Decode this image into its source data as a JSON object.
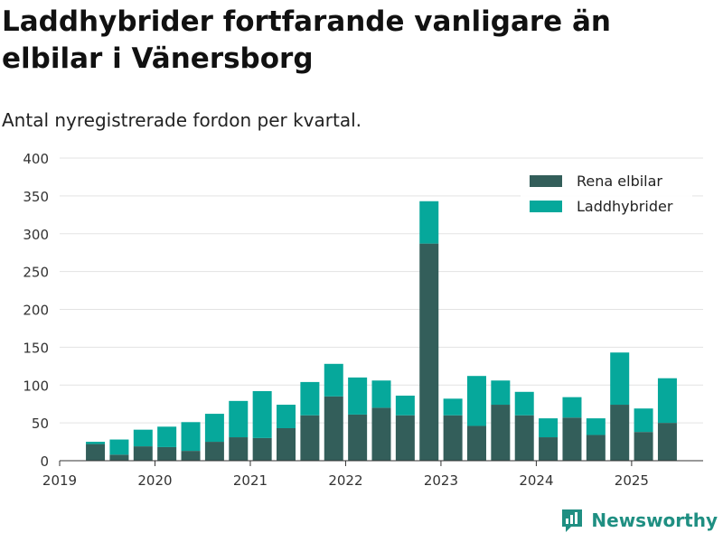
{
  "header": {
    "title": "Laddhybrider fortfarande vanligare än elbilar i Vänersborg",
    "subtitle": "Antal nyregistrerade fordon per kvartal."
  },
  "brand": {
    "name": "Newsworthy",
    "icon": "newsworthy-logo-icon",
    "color": "#1f8f82"
  },
  "chart_data": {
    "type": "bar",
    "stacked": true,
    "x_unit": "quarter",
    "x": [
      "2019-Q2",
      "2019-Q3",
      "2019-Q4",
      "2020-Q1",
      "2020-Q2",
      "2020-Q3",
      "2020-Q4",
      "2021-Q1",
      "2021-Q2",
      "2021-Q3",
      "2021-Q4",
      "2022-Q1",
      "2022-Q2",
      "2022-Q3",
      "2022-Q4",
      "2023-Q1",
      "2023-Q2",
      "2023-Q3",
      "2023-Q4",
      "2024-Q1",
      "2024-Q2",
      "2024-Q3",
      "2024-Q4",
      "2025-Q1",
      "2025-Q2"
    ],
    "series": [
      {
        "name": "Rena elbilar",
        "color": "#335e5a",
        "values": [
          22,
          8,
          19,
          18,
          13,
          25,
          31,
          30,
          43,
          60,
          85,
          61,
          70,
          60,
          287,
          60,
          46,
          74,
          60,
          31,
          57,
          34,
          74,
          38,
          50
        ]
      },
      {
        "name": "Laddhybrider",
        "color": "#06a89b",
        "values": [
          3,
          20,
          22,
          27,
          38,
          37,
          48,
          62,
          31,
          44,
          43,
          49,
          36,
          26,
          56,
          22,
          66,
          32,
          31,
          25,
          27,
          22,
          69,
          31,
          59
        ]
      }
    ],
    "xlim": [
      "2019-01-01",
      "2025-09-30"
    ],
    "x_ticks": [
      "2019",
      "2020",
      "2021",
      "2022",
      "2023",
      "2024",
      "2025"
    ],
    "ylim": [
      0,
      400
    ],
    "y_ticks": [
      0,
      50,
      100,
      150,
      200,
      250,
      300,
      350,
      400
    ],
    "grid": true,
    "legend": "top-right"
  }
}
